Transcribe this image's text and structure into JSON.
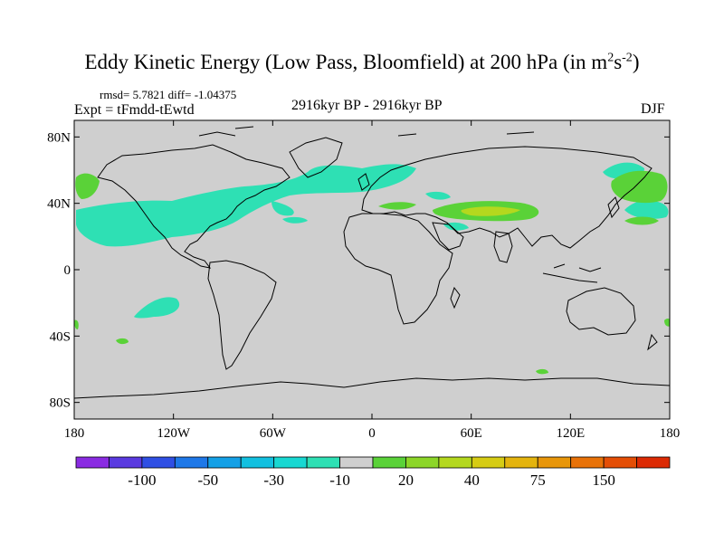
{
  "title": {
    "main": "Eddy Kinetic Energy (Low Pass, Bloomfield) at 200 hPa (in m",
    "sup1": "2",
    "mid": "s",
    "sup2": "-2",
    "end": ")"
  },
  "stats": "rmsd= 5.7821 diff= -1.04375",
  "experiment": "Expt = tFmdd-tEwtd",
  "comparison": "2916kyr BP - 2916kyr BP",
  "season": "DJF",
  "axes": {
    "y_labels": [
      "80N",
      "40N",
      "0",
      "40S",
      "80S"
    ],
    "x_labels": [
      "180",
      "120W",
      "60W",
      "0",
      "60E",
      "120E",
      "180"
    ]
  },
  "colorbar": {
    "colors": [
      "#8a2be2",
      "#5a3ae0",
      "#2f4fe4",
      "#1e78e8",
      "#14a0e6",
      "#12c0e0",
      "#18d8d2",
      "#2ee0b4",
      "#cfcfcf",
      "#5ad238",
      "#8cd628",
      "#b4d81e",
      "#d6cc14",
      "#e4b40e",
      "#e8960a",
      "#e87208",
      "#e44e06",
      "#dc2a04"
    ],
    "labels": [
      "-100",
      "-50",
      "-30",
      "-10",
      "20",
      "40",
      "75",
      "150"
    ]
  },
  "colors": {
    "land_ocean": "#cfcfcf",
    "frame": "#000000"
  }
}
